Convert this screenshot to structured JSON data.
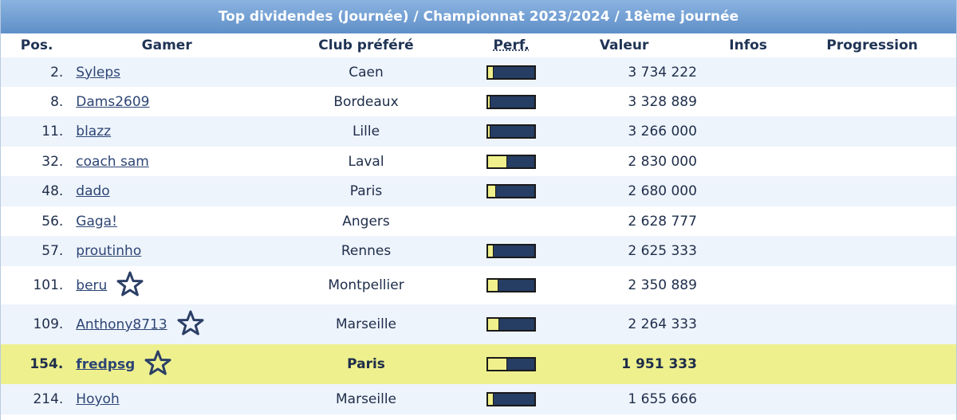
{
  "title": "Top dividendes (Journée) / Championnat 2023/2024 / 18ème journée",
  "headers": {
    "pos": "Pos.",
    "gamer": "Gamer",
    "club": "Club préféré",
    "perf": "Perf.",
    "valeur": "Valeur",
    "infos": "Infos",
    "progression": "Progression"
  },
  "rows": [
    {
      "pos": "2.",
      "gamer": "Syleps",
      "club": "Caen",
      "perf": 0.1,
      "valeur": "3 734 222",
      "star": false,
      "highlight": false
    },
    {
      "pos": "8.",
      "gamer": "Dams2609",
      "club": "Bordeaux",
      "perf": 0.03,
      "valeur": "3 328 889",
      "star": false,
      "highlight": false
    },
    {
      "pos": "11.",
      "gamer": "blazz",
      "club": "Lille",
      "perf": 0.03,
      "valeur": "3 266 000",
      "star": false,
      "highlight": false
    },
    {
      "pos": "32.",
      "gamer": "coach sam",
      "club": "Laval",
      "perf": 0.4,
      "valeur": "2 830 000",
      "star": false,
      "highlight": false
    },
    {
      "pos": "48.",
      "gamer": "dado",
      "club": "Paris",
      "perf": 0.15,
      "valeur": "2 680 000",
      "star": false,
      "highlight": false
    },
    {
      "pos": "56.",
      "gamer": "Gaga!",
      "club": "Angers",
      "perf": null,
      "valeur": "2 628 777",
      "star": false,
      "highlight": false
    },
    {
      "pos": "57.",
      "gamer": "proutinho",
      "club": "Rennes",
      "perf": 0.1,
      "valeur": "2 625 333",
      "star": false,
      "highlight": false
    },
    {
      "pos": "101.",
      "gamer": "beru",
      "club": "Montpellier",
      "perf": 0.2,
      "valeur": "2 350 889",
      "star": true,
      "highlight": false
    },
    {
      "pos": "109.",
      "gamer": "Anthony8713",
      "club": "Marseille",
      "perf": 0.22,
      "valeur": "2 264 333",
      "star": true,
      "highlight": false
    },
    {
      "pos": "154.",
      "gamer": "fredpsg",
      "club": "Paris",
      "perf": 0.4,
      "valeur": "1 951 333",
      "star": true,
      "highlight": true
    },
    {
      "pos": "214.",
      "gamer": "Hoyoh",
      "club": "Marseille",
      "perf": 0.1,
      "valeur": "1 655 666",
      "star": false,
      "highlight": false
    }
  ],
  "colors": {
    "header_bg": "#6f9dd3",
    "highlight_row": "#eef08e",
    "perf_fill": "#f0f08c",
    "perf_bg": "#263d64",
    "link": "#2d4575"
  },
  "icons": {
    "favorite": "star-outline-icon"
  }
}
